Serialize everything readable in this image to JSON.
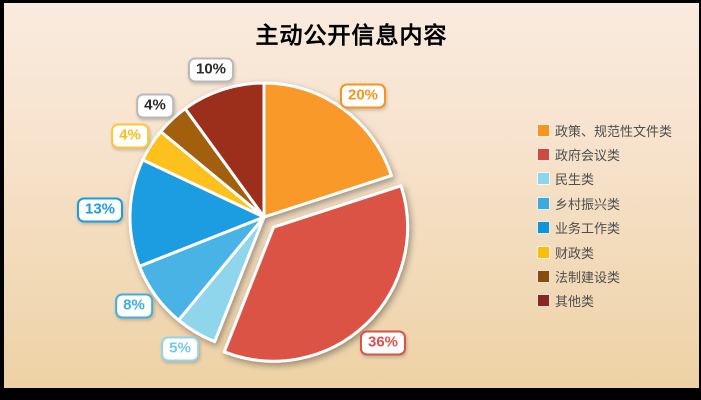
{
  "title": "主动公开信息内容",
  "chart_data": {
    "type": "pie",
    "title": "主动公开信息内容",
    "start_angle_deg": 0,
    "direction": "clockwise",
    "legend_position": "right",
    "total_percent": 100,
    "slices": [
      {
        "label": "政策、规范性文件类",
        "value": 20,
        "percent_label": "20%",
        "color": "#F8992B",
        "legend_color": "#F5941F",
        "label_color": "#F7941E",
        "label_border_color": "#F7941E",
        "exploded": false
      },
      {
        "label": "政府会议类",
        "value": 36,
        "percent_label": "36%",
        "color": "#DB5244",
        "legend_color": "#CB4A42",
        "label_color": "#D8514A",
        "label_border_color": "#D8514A",
        "exploded": true
      },
      {
        "label": "民生类",
        "value": 5,
        "percent_label": "5%",
        "color": "#8FD5EB",
        "legend_color": "#8FD4E9",
        "label_color": "#72C9E8",
        "label_border_color": "#8FD5EB",
        "exploded": false
      },
      {
        "label": "乡村振兴类",
        "value": 8,
        "percent_label": "8%",
        "color": "#4AB3E6",
        "legend_color": "#3EA9E0",
        "label_color": "#3FAEE5",
        "label_border_color": "#3FAEE5",
        "exploded": false
      },
      {
        "label": "业务工作类",
        "value": 13,
        "percent_label": "13%",
        "color": "#1E9CE1",
        "legend_color": "#1193D8",
        "label_color": "#1B9CE0",
        "label_border_color": "#1B9CE0",
        "exploded": false
      },
      {
        "label": "财政类",
        "value": 4,
        "percent_label": "4%",
        "color": "#FCC11C",
        "legend_color": "#FBBE0E",
        "label_color": "#FBBE18",
        "label_border_color": "#FBC838",
        "exploded": false
      },
      {
        "label": "法制建设类",
        "value": 4,
        "percent_label": "4%",
        "color": "#A25F11",
        "legend_color": "#8B4A0E",
        "label_color": "#2B2B2B",
        "label_border_color": "#B9B9B9",
        "exploded": false
      },
      {
        "label": "其他类",
        "value": 10,
        "percent_label": "10%",
        "color": "#9C2D1F",
        "legend_color": "#8B2520",
        "label_color": "#2B2B2B",
        "label_border_color": "#B9B9B9",
        "exploded": false
      }
    ]
  },
  "colors": {
    "background_top": "#FAEBDE",
    "background_bottom": "#EED2A5",
    "frame": "#000000",
    "slice_stroke": "#FFFFFF",
    "label_background": "#FFFFFF",
    "legend_text": "#4D4D4D",
    "title_text": "#000000"
  }
}
